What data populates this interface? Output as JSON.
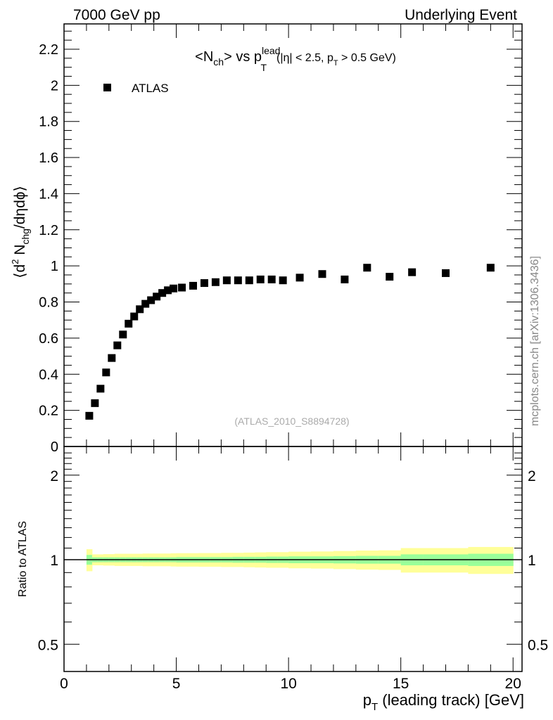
{
  "header": {
    "left": "7000 GeV pp",
    "right": "Underlying Event"
  },
  "side_label": "mcplots.cern.ch [arXiv:1306.3436]",
  "analysis_tag": "(ATLAS_2010_S8894728)",
  "chart_data": [
    {
      "type": "scatter",
      "title": "<Nch> vs pT lead (|η| < 2.5, pT > 0.5 GeV)",
      "title_parts": {
        "a": "<N",
        "ch": "ch",
        "b": "> vs p",
        "lead": "lead",
        "T": "T",
        "c": "(|η| < 2.5, p",
        "T2": "T",
        "d": " > 0.5 GeV)"
      },
      "ylabel": "⟨d² Nchg/dηdϕ⟩",
      "ylabel_parts": {
        "a": "⟨d",
        "sup": "2",
        "b": " N",
        "sub": "chg",
        "c": "/dηdϕ⟩"
      },
      "xlim": [
        0,
        20.4
      ],
      "ylim": [
        0,
        2.34
      ],
      "yticks": [
        "0",
        "0.2",
        "0.4",
        "0.6",
        "0.8",
        "1",
        "1.2",
        "1.4",
        "1.6",
        "1.8",
        "2",
        "2.2"
      ],
      "legend": {
        "entries": [
          "ATLAS"
        ],
        "placement": "top-left"
      },
      "series": [
        {
          "name": "ATLAS",
          "x": [
            1.125,
            1.375,
            1.625,
            1.875,
            2.125,
            2.375,
            2.625,
            2.875,
            3.125,
            3.375,
            3.625,
            3.875,
            4.125,
            4.375,
            4.625,
            4.875,
            5.25,
            5.75,
            6.25,
            6.75,
            7.25,
            7.75,
            8.25,
            8.75,
            9.25,
            9.75,
            10.5,
            11.5,
            12.5,
            13.5,
            14.5,
            15.5,
            17,
            19
          ],
          "y": [
            0.17,
            0.24,
            0.32,
            0.41,
            0.49,
            0.56,
            0.62,
            0.68,
            0.72,
            0.76,
            0.79,
            0.81,
            0.83,
            0.85,
            0.865,
            0.875,
            0.88,
            0.89,
            0.905,
            0.91,
            0.92,
            0.92,
            0.92,
            0.925,
            0.925,
            0.92,
            0.935,
            0.955,
            0.925,
            0.99,
            0.94,
            0.965,
            0.96,
            0.99
          ]
        }
      ]
    },
    {
      "type": "area",
      "ylabel": "Ratio to ATLAS",
      "xlabel": "pT (leading track) [GeV]",
      "xlabel_parts": {
        "a": "p",
        "T": "T",
        "b": " (leading track) [GeV]"
      },
      "xticks": [
        "0",
        "5",
        "10",
        "15",
        "20"
      ],
      "yticks": [
        "0.5",
        "1",
        "2"
      ],
      "yscale": "log",
      "ylim": [
        0.4,
        2.53
      ],
      "bin_edges": [
        1.0,
        1.25,
        1.5,
        1.75,
        2.0,
        2.25,
        2.5,
        2.75,
        3.0,
        3.25,
        3.5,
        3.75,
        4.0,
        4.25,
        4.5,
        4.75,
        5.0,
        5.5,
        6.0,
        6.5,
        7.0,
        7.5,
        8.0,
        8.5,
        9.0,
        9.5,
        10.0,
        11,
        12,
        13,
        14,
        15,
        16,
        18,
        20
      ],
      "green_halfwidth": [
        0.04,
        0.02,
        0.02,
        0.02,
        0.02,
        0.02,
        0.02,
        0.02,
        0.02,
        0.02,
        0.02,
        0.02,
        0.02,
        0.02,
        0.02,
        0.02,
        0.022,
        0.022,
        0.022,
        0.022,
        0.022,
        0.024,
        0.024,
        0.024,
        0.026,
        0.026,
        0.028,
        0.028,
        0.03,
        0.032,
        0.032,
        0.045,
        0.045,
        0.05
      ],
      "yellow_halfwidth": [
        0.09,
        0.045,
        0.045,
        0.047,
        0.047,
        0.05,
        0.05,
        0.05,
        0.05,
        0.05,
        0.052,
        0.052,
        0.052,
        0.052,
        0.052,
        0.054,
        0.055,
        0.055,
        0.056,
        0.056,
        0.058,
        0.058,
        0.06,
        0.062,
        0.064,
        0.064,
        0.068,
        0.07,
        0.074,
        0.078,
        0.08,
        0.1,
        0.1,
        0.11
      ]
    }
  ]
}
